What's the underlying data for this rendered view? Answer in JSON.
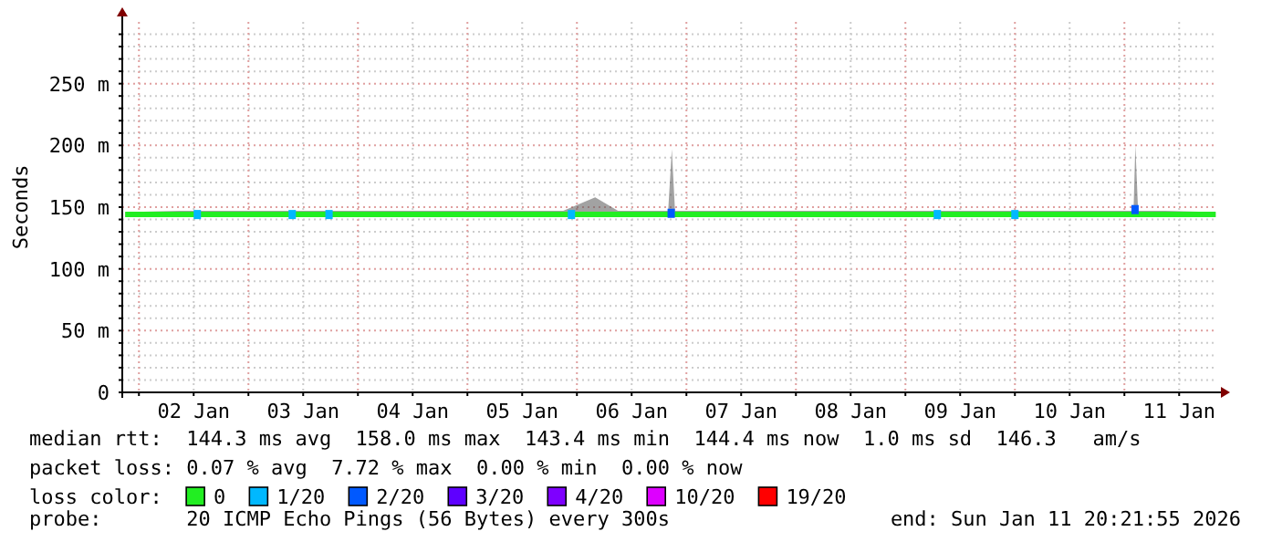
{
  "chart_data": {
    "type": "line",
    "ylabel": "Seconds",
    "legend_title": "loss color:",
    "legend": "bottom",
    "grid": true,
    "xlim": [
      "2026-01-01T20:21",
      "2026-01-11T20:21"
    ],
    "xticks": [
      {
        "value": "2026-01-02T00:00",
        "label": null
      },
      {
        "value": "2026-01-02T12:00",
        "label": "02 Jan"
      },
      {
        "value": "2026-01-03T00:00",
        "label": null
      },
      {
        "value": "2026-01-03T12:00",
        "label": "03 Jan"
      },
      {
        "value": "2026-01-04T00:00",
        "label": null
      },
      {
        "value": "2026-01-04T12:00",
        "label": "04 Jan"
      },
      {
        "value": "2026-01-05T00:00",
        "label": null
      },
      {
        "value": "2026-01-05T12:00",
        "label": "05 Jan"
      },
      {
        "value": "2026-01-06T00:00",
        "label": null
      },
      {
        "value": "2026-01-06T12:00",
        "label": "06 Jan"
      },
      {
        "value": "2026-01-07T00:00",
        "label": null
      },
      {
        "value": "2026-01-07T12:00",
        "label": "07 Jan"
      },
      {
        "value": "2026-01-08T00:00",
        "label": null
      },
      {
        "value": "2026-01-08T12:00",
        "label": "08 Jan"
      },
      {
        "value": "2026-01-09T00:00",
        "label": null
      },
      {
        "value": "2026-01-09T12:00",
        "label": "09 Jan"
      },
      {
        "value": "2026-01-10T00:00",
        "label": null
      },
      {
        "value": "2026-01-10T12:00",
        "label": "10 Jan"
      },
      {
        "value": "2026-01-11T00:00",
        "label": null
      },
      {
        "value": "2026-01-11T12:00",
        "label": "11 Jan"
      }
    ],
    "ylim": [
      0,
      300
    ],
    "yticks": [
      0,
      {
        "value": 10,
        "label": null
      },
      {
        "value": 20,
        "label": null
      },
      {
        "value": 30,
        "label": null
      },
      {
        "value": 40,
        "label": null
      },
      {
        "value": 50,
        "label": "50 m"
      },
      {
        "value": 60,
        "label": null
      },
      {
        "value": 70,
        "label": null
      },
      {
        "value": 80,
        "label": null
      },
      {
        "value": 90,
        "label": null
      },
      {
        "value": 100,
        "label": "100 m"
      },
      {
        "value": 110,
        "label": null
      },
      {
        "value": 120,
        "label": null
      },
      {
        "value": 130,
        "label": null
      },
      {
        "value": 140,
        "label": null
      },
      {
        "value": 150,
        "label": "150 m"
      },
      {
        "value": 160,
        "label": null
      },
      {
        "value": 170,
        "label": null
      },
      {
        "value": 180,
        "label": null
      },
      {
        "value": 190,
        "label": null
      },
      {
        "value": 200,
        "label": "200 m"
      },
      {
        "value": 210,
        "label": null
      },
      {
        "value": 220,
        "label": null
      },
      {
        "value": 230,
        "label": null
      },
      {
        "value": 240,
        "label": null
      },
      {
        "value": 250,
        "label": "250 m"
      },
      {
        "value": 260,
        "label": null
      },
      {
        "value": 270,
        "label": null
      },
      {
        "value": 280,
        "label": null
      },
      {
        "value": 290,
        "label": null
      }
    ],
    "series": [
      {
        "name": "0",
        "color": "#22ee22",
        "x": [
          "2026-01-01T21:00",
          "2026-01-02T09:00",
          "2026-01-02T21:00",
          "2026-01-03T09:00",
          "2026-01-03T21:00",
          "2026-01-04T09:00",
          "2026-01-04T21:00",
          "2026-01-05T09:00",
          "2026-01-05T21:00",
          "2026-01-06T04:00",
          "2026-01-06T09:00",
          "2026-01-06T20:00",
          "2026-01-06T20:48",
          "2026-01-06T21:30",
          "2026-01-07T09:00",
          "2026-01-07T21:00",
          "2026-01-08T09:00",
          "2026-01-08T21:00",
          "2026-01-09T09:00",
          "2026-01-09T21:00",
          "2026-01-10T09:00",
          "2026-01-10T21:00",
          "2026-01-11T02:00",
          "2026-01-11T02:24",
          "2026-01-11T03:00",
          "2026-01-11T09:00",
          "2026-01-11T20:00"
        ],
        "values": [
          144,
          144,
          144,
          144,
          144,
          144,
          144,
          144,
          144,
          144,
          144,
          144,
          144,
          144,
          144,
          144,
          144,
          144,
          144,
          144,
          144,
          144,
          144,
          144,
          144,
          144,
          144
        ],
        "lower": [
          142,
          142,
          142,
          142,
          142,
          142,
          142,
          142,
          142,
          142,
          142,
          142,
          142,
          142,
          142,
          142,
          142,
          142,
          142,
          142,
          142,
          142,
          142,
          142,
          142,
          142,
          142
        ],
        "upper": [
          146,
          147,
          147,
          147,
          147,
          147,
          147,
          147,
          147,
          158,
          147,
          147,
          197,
          147,
          147,
          147,
          147,
          147,
          147,
          147,
          147,
          147,
          147,
          200,
          147,
          147,
          146
        ]
      },
      {
        "name": "1/20",
        "color": "#00b8ff",
        "type": "scatter",
        "x": [
          "2026-01-02T12:48",
          "2026-01-03T09:36",
          "2026-01-03T17:40",
          "2026-01-05T22:48",
          "2026-01-09T07:00",
          "2026-01-10T00:00"
        ],
        "values": [
          144,
          144,
          144,
          144,
          144,
          144
        ]
      },
      {
        "name": "2/20",
        "color": "#0059ff",
        "type": "scatter",
        "x": [
          "2026-01-06T20:40",
          "2026-01-11T02:20"
        ],
        "values": [
          145,
          148
        ]
      },
      {
        "name": "3/20",
        "color": "#5e00ff",
        "type": "scatter"
      },
      {
        "name": "4/20",
        "color": "#7e00ff",
        "type": "scatter"
      },
      {
        "name": "10/20",
        "color": "#dd00ff",
        "type": "scatter"
      },
      {
        "name": "19/20",
        "color": "#ff0000",
        "type": "scatter"
      }
    ],
    "annotations": [
      "median rtt:  144.3 ms avg  158.0 ms max  143.4 ms min  144.4 ms now  1.0 ms sd  146.3   am/s",
      "packet loss: 0.07 % avg  7.72 % max  0.00 % min  0.00 % now",
      "probe:       20 ICMP Echo Pings (56 Bytes) every 300s",
      "end: Sun Jan 11 20:21:55 2026"
    ]
  }
}
